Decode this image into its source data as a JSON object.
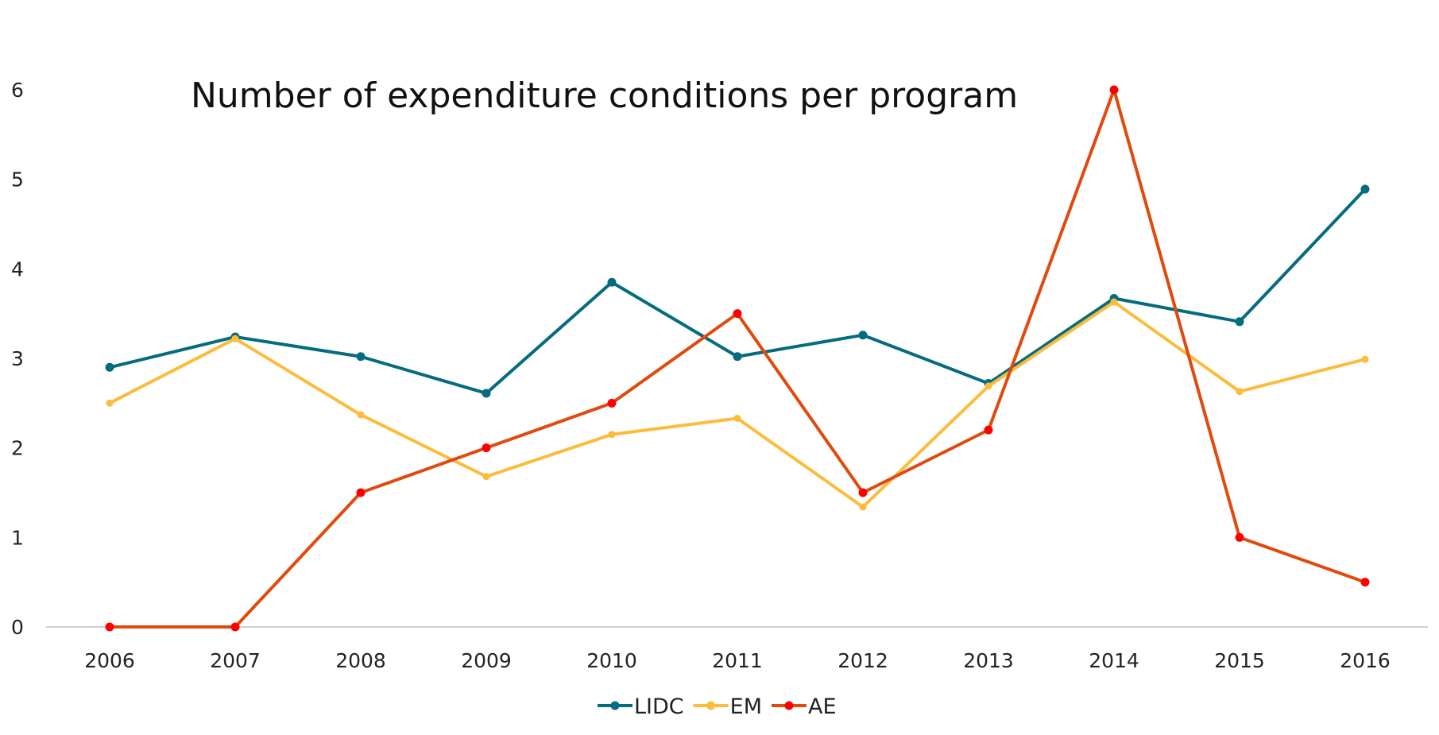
{
  "chart_data": {
    "type": "line",
    "title": "Number of expenditure conditions per program",
    "xlabel": "",
    "ylabel": "",
    "categories": [
      "2006",
      "2007",
      "2008",
      "2009",
      "2010",
      "2011",
      "2012",
      "2013",
      "2014",
      "2015",
      "2016"
    ],
    "yticks": [
      "0",
      "1",
      "2",
      "3",
      "4",
      "5",
      "6"
    ],
    "ylim": [
      0,
      6
    ],
    "grid": false,
    "legend_position": "bottom",
    "series": [
      {
        "name": "LIDC",
        "color": "#046c7e",
        "marker_color": "#046c7e",
        "values": [
          2.9,
          3.24,
          3.02,
          2.61,
          3.85,
          3.02,
          3.26,
          2.72,
          3.67,
          3.41,
          4.89
        ]
      },
      {
        "name": "EM",
        "color": "#fbbc3c",
        "marker_color": "#fbbc3c",
        "values": [
          2.5,
          3.22,
          2.37,
          1.68,
          2.15,
          2.33,
          1.34,
          2.69,
          3.63,
          2.63,
          2.99
        ]
      },
      {
        "name": "AE",
        "color": "#e04a0c",
        "marker_color": "#ff0000",
        "values": [
          0,
          0,
          1.5,
          2.0,
          2.5,
          3.5,
          1.5,
          2.2,
          6.0,
          1.0,
          0.5
        ]
      }
    ]
  }
}
